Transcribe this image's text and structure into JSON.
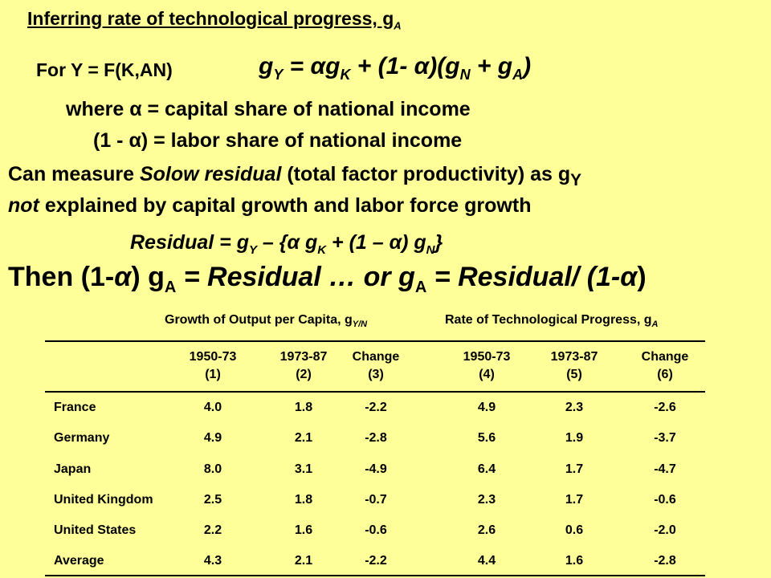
{
  "title": {
    "text": "Inferring rate of technological progress, g",
    "sub": "A"
  },
  "model": {
    "label": "For Y = F(K,AN)"
  },
  "equation": {
    "g1": "g",
    "s1": "Y",
    "p1": " = αg",
    "s2": "K",
    "p2": " + (1- α)(g",
    "s3": "N",
    "p3": " + g",
    "s4": "A",
    "p4": ")"
  },
  "definitions": {
    "line1": "where α = capital share of national income",
    "line2": "(1 - α) =  labor share of national income"
  },
  "solow": {
    "a": "Can measure ",
    "b": "Solow residual",
    "c": " (total factor productivity) as g",
    "d": "Y",
    "e": "not",
    "f": " explained by capital growth and labor force growth"
  },
  "residual_eq": {
    "a": "Residual = g",
    "b": "Y",
    "c": " – {α g",
    "d": "K",
    "e": " + (1 – α) g",
    "f": "N",
    "g": "}"
  },
  "conclusion": {
    "a": "Then (1-",
    "b": "α",
    "c": ") g",
    "d": "A",
    "e": " = Residual … or g",
    "f": "A",
    "g": " = Residual/ (1-",
    "h": "α",
    "i": ")"
  },
  "table": {
    "group1": {
      "text": "Growth of Output per Capita, g",
      "sub": "Y/N"
    },
    "group2": {
      "text": "Rate of Technological Progress, g",
      "sub": "A"
    },
    "columns": [
      {
        "period": "1950-73",
        "num": "(1)"
      },
      {
        "period": "1973-87",
        "num": "(2)"
      },
      {
        "period": "Change",
        "num": "(3)"
      },
      {
        "period": "1950-73",
        "num": "(4)"
      },
      {
        "period": "1973-87",
        "num": "(5)"
      },
      {
        "period": "Change",
        "num": "(6)"
      }
    ],
    "rows": [
      {
        "country": "France",
        "values": [
          "4.0",
          "1.8",
          "-2.2",
          "4.9",
          "2.3",
          "-2.6"
        ]
      },
      {
        "country": "Germany",
        "values": [
          "4.9",
          "2.1",
          "-2.8",
          "5.6",
          "1.9",
          "-3.7"
        ]
      },
      {
        "country": "Japan",
        "values": [
          "8.0",
          "3.1",
          "-4.9",
          "6.4",
          "1.7",
          "-4.7"
        ]
      },
      {
        "country": "United Kingdom",
        "values": [
          "2.5",
          "1.8",
          "-0.7",
          "2.3",
          "1.7",
          "-0.6"
        ]
      },
      {
        "country": "United States",
        "values": [
          "2.2",
          "1.6",
          "-0.6",
          "2.6",
          "0.6",
          "-2.0"
        ]
      },
      {
        "country": "Average",
        "values": [
          "4.3",
          "2.1",
          "-2.2",
          "4.4",
          "1.6",
          "-2.8"
        ]
      }
    ]
  }
}
